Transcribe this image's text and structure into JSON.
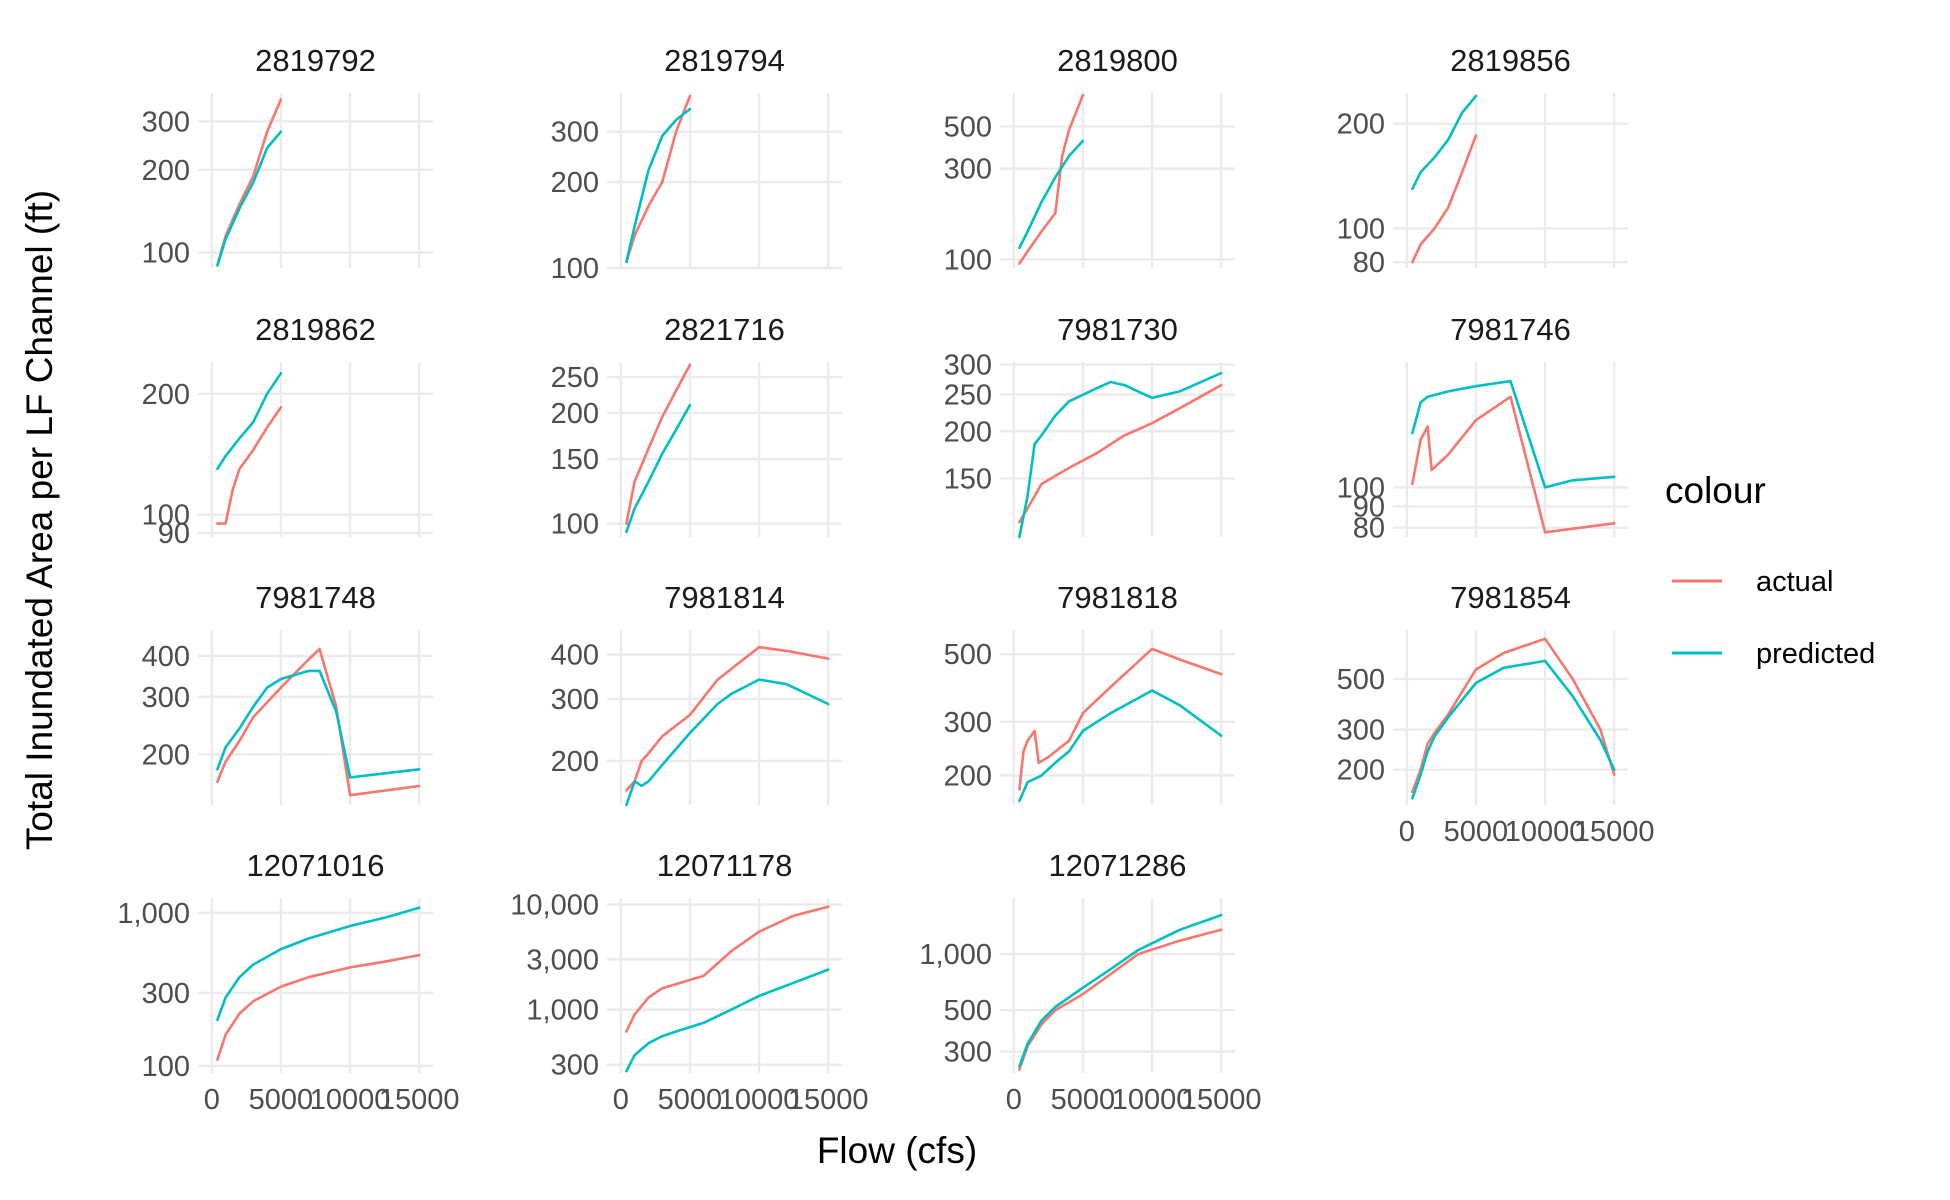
{
  "chart_data": {
    "type": "line",
    "xlabel": "Flow (cfs)",
    "ylabel": "Total Inundated Area per LF Channel (ft)",
    "y_scale": "log",
    "grid": true,
    "legend": {
      "title": "colour",
      "placement": "right",
      "entries": [
        {
          "name": "actual",
          "color": "#F8766D"
        },
        {
          "name": "predicted",
          "color": "#00BFC4"
        }
      ]
    },
    "x_ticks": [
      0,
      5000,
      10000,
      15000
    ],
    "x_tick_labels": [
      "0",
      "5000",
      "10000",
      "15000"
    ],
    "panels": [
      {
        "id": "2819792",
        "ylim": [
          88,
          380
        ],
        "y_ticks": [
          100,
          200,
          300
        ],
        "y_tick_labels": [
          "100",
          "200",
          "300"
        ],
        "show_x_axis": false,
        "series": [
          {
            "name": "actual",
            "x": [
              400,
              1000,
              2000,
              3000,
              4000,
              5000
            ],
            "values": [
              90,
              115,
              150,
              190,
              275,
              360
            ]
          },
          {
            "name": "predicted",
            "x": [
              400,
              1000,
              2000,
              3000,
              4000,
              5000
            ],
            "values": [
              90,
              112,
              145,
              180,
              240,
              275
            ]
          }
        ]
      },
      {
        "id": "2819794",
        "ylim": [
          100,
          410
        ],
        "y_ticks": [
          100,
          200,
          300
        ],
        "y_tick_labels": [
          "100",
          "200",
          "300"
        ],
        "show_x_axis": false,
        "series": [
          {
            "name": "actual",
            "x": [
              400,
              1000,
              2000,
              3000,
              4000,
              5000
            ],
            "values": [
              105,
              130,
              165,
              200,
              300,
              400
            ]
          },
          {
            "name": "predicted",
            "x": [
              400,
              1000,
              2000,
              3000,
              4000,
              5000
            ],
            "values": [
              105,
              140,
              220,
              290,
              330,
              360
            ]
          }
        ]
      },
      {
        "id": "2819800",
        "ylim": [
          90,
          750
        ],
        "y_ticks": [
          100,
          300,
          500
        ],
        "y_tick_labels": [
          "100",
          "300",
          "500"
        ],
        "show_x_axis": false,
        "series": [
          {
            "name": "actual",
            "x": [
              400,
              1000,
              2000,
              3000,
              3500,
              4000,
              5000
            ],
            "values": [
              95,
              110,
              140,
              175,
              350,
              480,
              730
            ]
          },
          {
            "name": "predicted",
            "x": [
              400,
              1000,
              2000,
              3000,
              4000,
              5000
            ],
            "values": [
              115,
              140,
              200,
              270,
              350,
              420
            ]
          }
        ]
      },
      {
        "id": "2819856",
        "ylim": [
          77,
          245
        ],
        "y_ticks": [
          80,
          100,
          200
        ],
        "y_tick_labels": [
          "80",
          "100",
          "200"
        ],
        "show_x_axis": false,
        "series": [
          {
            "name": "actual",
            "x": [
              400,
              1000,
              2000,
              3000,
              4000,
              5000
            ],
            "values": [
              80,
              90,
              100,
              115,
              145,
              185
            ]
          },
          {
            "name": "predicted",
            "x": [
              400,
              1000,
              2000,
              3000,
              4000,
              5000
            ],
            "values": [
              130,
              145,
              160,
              180,
              215,
              240
            ]
          }
        ]
      },
      {
        "id": "2819862",
        "ylim": [
          88,
          240
        ],
        "y_ticks": [
          90,
          100,
          200
        ],
        "y_tick_labels": [
          "90",
          "100",
          "200"
        ],
        "show_x_axis": false,
        "series": [
          {
            "name": "actual",
            "x": [
              400,
              1000,
              1500,
              2000,
              3000,
              4000,
              5000
            ],
            "values": [
              95,
              95,
              115,
              130,
              145,
              165,
              185
            ]
          },
          {
            "name": "predicted",
            "x": [
              400,
              1000,
              2000,
              3000,
              4000,
              5000
            ],
            "values": [
              130,
              140,
              155,
              170,
              200,
              225
            ]
          }
        ]
      },
      {
        "id": "2821716",
        "ylim": [
          92,
          275
        ],
        "y_ticks": [
          100,
          150,
          200,
          250
        ],
        "y_tick_labels": [
          "100",
          "150",
          "200",
          "250"
        ],
        "show_x_axis": false,
        "series": [
          {
            "name": "actual",
            "x": [
              400,
              1000,
              2000,
              3000,
              4000,
              5000
            ],
            "values": [
              100,
              130,
              160,
              195,
              230,
              270
            ]
          },
          {
            "name": "predicted",
            "x": [
              400,
              1000,
              2000,
              3000,
              4000,
              5000
            ],
            "values": [
              95,
              110,
              130,
              155,
              180,
              210
            ]
          }
        ]
      },
      {
        "id": "7981730",
        "ylim": [
          105,
          305
        ],
        "y_ticks": [
          150,
          200,
          250,
          300
        ],
        "y_tick_labels": [
          "150",
          "200",
          "250",
          "300"
        ],
        "show_x_axis": false,
        "series": [
          {
            "name": "actual",
            "x": [
              400,
              1000,
              2000,
              4000,
              6000,
              8000,
              10000,
              12000,
              15000
            ],
            "values": [
              115,
              125,
              145,
              160,
              175,
              195,
              210,
              230,
              265
            ]
          },
          {
            "name": "predicted",
            "x": [
              400,
              1000,
              1500,
              2000,
              3000,
              4000,
              6000,
              7000,
              8000,
              10000,
              12000,
              15000
            ],
            "values": [
              105,
              135,
              185,
              195,
              220,
              240,
              260,
              270,
              265,
              245,
              255,
              285
            ]
          }
        ]
      },
      {
        "id": "7981746",
        "ylim": [
          76,
          200
        ],
        "y_ticks": [
          80,
          90,
          100
        ],
        "y_tick_labels": [
          "80",
          "90",
          "100"
        ],
        "show_x_axis": false,
        "series": [
          {
            "name": "actual",
            "x": [
              400,
              1000,
              1500,
              1800,
              3000,
              5000,
              7500,
              10000,
              15000
            ],
            "values": [
              102,
              130,
              140,
              110,
              120,
              145,
              165,
              78,
              82
            ]
          },
          {
            "name": "predicted",
            "x": [
              400,
              1000,
              1500,
              3000,
              5000,
              7500,
              10000,
              12000,
              15000
            ],
            "values": [
              135,
              160,
              165,
              170,
              175,
              180,
              100,
              104,
              106
            ]
          }
        ]
      },
      {
        "id": "7981748",
        "ylim": [
          140,
          480
        ],
        "y_ticks": [
          200,
          300,
          400
        ],
        "y_tick_labels": [
          "200",
          "300",
          "400"
        ],
        "show_x_axis": false,
        "series": [
          {
            "name": "actual",
            "x": [
              400,
              1000,
              2000,
              3000,
              5000,
              7000,
              7800,
              9000,
              10000,
              15000
            ],
            "values": [
              165,
              190,
              220,
              260,
              320,
              390,
              420,
              280,
              150,
              160
            ]
          },
          {
            "name": "predicted",
            "x": [
              400,
              1000,
              2000,
              3000,
              4000,
              5000,
              7000,
              7800,
              9000,
              10000,
              15000
            ],
            "values": [
              180,
              210,
              240,
              280,
              320,
              340,
              360,
              360,
              270,
              170,
              180
            ]
          }
        ]
      },
      {
        "id": "7981814",
        "ylim": [
          150,
          470
        ],
        "y_ticks": [
          200,
          300,
          400
        ],
        "y_tick_labels": [
          "200",
          "300",
          "400"
        ],
        "show_x_axis": false,
        "series": [
          {
            "name": "actual",
            "x": [
              400,
              1000,
              1500,
              2000,
              3000,
              5000,
              7000,
              10000,
              12000,
              15000
            ],
            "values": [
              165,
              175,
              200,
              210,
              235,
              270,
              340,
              420,
              410,
              390
            ]
          },
          {
            "name": "predicted",
            "x": [
              400,
              1000,
              1500,
              2000,
              3000,
              5000,
              7000,
              8000,
              10000,
              12000,
              15000
            ],
            "values": [
              150,
              175,
              170,
              175,
              195,
              240,
              290,
              310,
              340,
              330,
              290
            ]
          }
        ]
      },
      {
        "id": "7981818",
        "ylim": [
          160,
          600
        ],
        "y_ticks": [
          200,
          300,
          500
        ],
        "y_tick_labels": [
          "200",
          "300",
          "500"
        ],
        "show_x_axis": false,
        "series": [
          {
            "name": "actual",
            "x": [
              400,
              700,
              1000,
              1500,
              1800,
              2500,
              4000,
              5000,
              7000,
              10000,
              12000,
              15000
            ],
            "values": [
              180,
              240,
              260,
              280,
              220,
              230,
              260,
              320,
              390,
              520,
              480,
              430
            ]
          },
          {
            "name": "predicted",
            "x": [
              400,
              1000,
              2000,
              3000,
              4000,
              5000,
              7000,
              10000,
              12000,
              15000
            ],
            "values": [
              165,
              190,
              200,
              220,
              240,
              280,
              320,
              380,
              340,
              270
            ]
          }
        ]
      },
      {
        "id": "7981854",
        "ylim": [
          140,
          820
        ],
        "y_ticks": [
          200,
          300,
          500
        ],
        "y_tick_labels": [
          "200",
          "300",
          "500"
        ],
        "show_x_axis": true,
        "series": [
          {
            "name": "actual",
            "x": [
              400,
              1000,
              1500,
              2000,
              3000,
              5000,
              7000,
              10000,
              12000,
              14000,
              15000
            ],
            "values": [
              160,
              200,
              260,
              290,
              350,
              550,
              650,
              750,
              500,
              300,
              190
            ]
          },
          {
            "name": "predicted",
            "x": [
              400,
              1000,
              1500,
              2000,
              3000,
              5000,
              7000,
              10000,
              12000,
              14000,
              15000
            ],
            "values": [
              150,
              190,
              240,
              280,
              340,
              480,
              560,
              600,
              420,
              270,
              200
            ]
          }
        ]
      },
      {
        "id": "12071016",
        "ylim": [
          90,
          1250
        ],
        "y_ticks": [
          100,
          300,
          1000
        ],
        "y_tick_labels": [
          "100",
          "300",
          "1,000"
        ],
        "show_x_axis": true,
        "series": [
          {
            "name": "actual",
            "x": [
              400,
              1000,
              2000,
              3000,
              5000,
              7000,
              10000,
              12500,
              15000
            ],
            "values": [
              110,
              160,
              220,
              265,
              330,
              380,
              440,
              480,
              530
            ]
          },
          {
            "name": "predicted",
            "x": [
              400,
              1000,
              2000,
              3000,
              5000,
              7000,
              10000,
              12500,
              15000
            ],
            "values": [
              200,
              280,
              380,
              460,
              580,
              680,
              820,
              930,
              1080
            ]
          }
        ]
      },
      {
        "id": "12071178",
        "ylim": [
          250,
          11500
        ],
        "y_ticks": [
          300,
          1000,
          3000,
          10000
        ],
        "y_tick_labels": [
          "300",
          "1,000",
          "3,000",
          "10,000"
        ],
        "show_x_axis": true,
        "series": [
          {
            "name": "actual",
            "x": [
              400,
              1000,
              2000,
              3000,
              4000,
              6000,
              8000,
              10000,
              12500,
              15000
            ],
            "values": [
              620,
              900,
              1300,
              1600,
              1750,
              2100,
              3600,
              5500,
              7800,
              9500
            ]
          },
          {
            "name": "predicted",
            "x": [
              400,
              1000,
              2000,
              3000,
              4000,
              6000,
              8000,
              10000,
              12500,
              15000
            ],
            "values": [
              260,
              370,
              480,
              560,
              620,
              750,
              1000,
              1350,
              1800,
              2400
            ]
          }
        ]
      },
      {
        "id": "12071286",
        "ylim": [
          230,
          2000
        ],
        "y_ticks": [
          300,
          500,
          1000
        ],
        "y_tick_labels": [
          "300",
          "500",
          "1,000"
        ],
        "show_x_axis": true,
        "series": [
          {
            "name": "actual",
            "x": [
              400,
              1000,
              2000,
              3000,
              5000,
              7000,
              9000,
              12000,
              15000
            ],
            "values": [
              240,
              320,
              420,
              500,
              610,
              780,
              1000,
              1180,
              1350
            ]
          },
          {
            "name": "predicted",
            "x": [
              400,
              1000,
              2000,
              3000,
              5000,
              7000,
              9000,
              12000,
              15000
            ],
            "values": [
              250,
              330,
              440,
              520,
              660,
              830,
              1050,
              1350,
              1620
            ]
          }
        ]
      }
    ]
  }
}
